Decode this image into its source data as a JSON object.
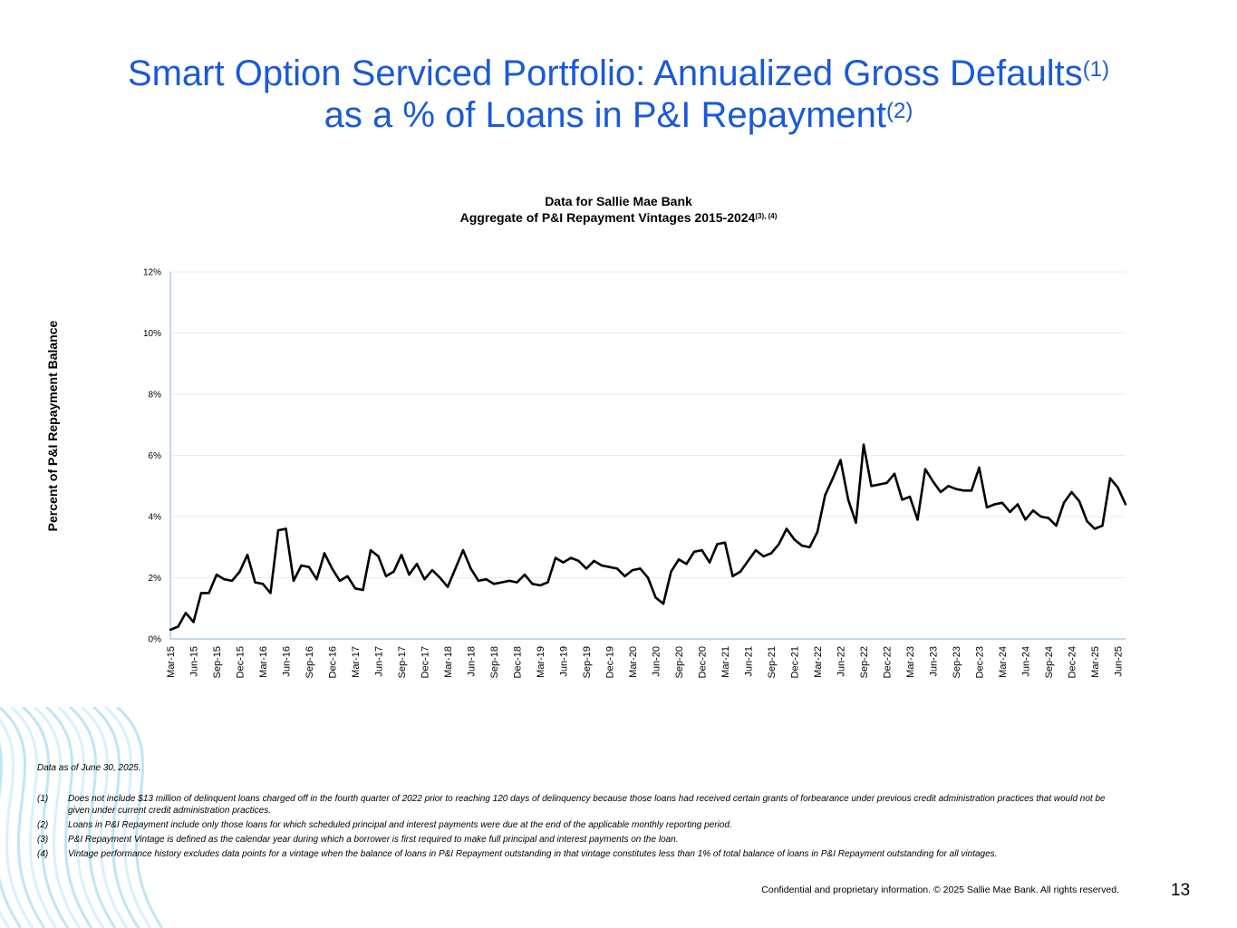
{
  "slide": {
    "title_part1": "Smart Option Serviced Portfolio: Annualized Gross Defaults",
    "title_sup1": "(1)",
    "title_part2": "as a % of Loans in P&I Repayment",
    "title_sup2": "(2)",
    "data_as_of": "Data as of June 30, 2025.",
    "footnotes": [
      {
        "num": "(1)",
        "text": "Does not include $13 million of delinquent loans charged off in the fourth quarter of 2022 prior to reaching 120 days of delinquency because those loans had received certain grants of forbearance under previous credit administration practices that would not be given under current credit administration practices."
      },
      {
        "num": "(2)",
        "text": "Loans in P&I Repayment include only those loans for which scheduled principal and interest payments were due at the end of the applicable monthly reporting period."
      },
      {
        "num": "(3)",
        "text": "P&I Repayment Vintage is defined as the calendar year during which a borrower is first required to make full principal and interest payments on the loan."
      },
      {
        "num": "(4)",
        "text": "Vintage performance history excludes data points for a vintage when the balance of loans in P&I Repayment outstanding in that vintage constitutes less than 1% of total balance of loans in P&I Repayment outstanding for all vintages."
      }
    ],
    "confidential": "Confidential and proprietary information. © 2025 Sallie Mae Bank. All rights reserved.",
    "page_number": "13"
  },
  "chart_data": {
    "type": "line",
    "title_line1": "Data for Sallie Mae Bank",
    "title_line2": "Aggregate of P&I Repayment Vintages 2015-2024",
    "title_sup": "(3), (4)",
    "xlabel": "",
    "ylabel": "Percent of P&I Repayment  Balance",
    "ylim": [
      0,
      12
    ],
    "yticks": [
      0,
      2,
      4,
      6,
      8,
      10,
      12
    ],
    "ytick_labels": [
      "0%",
      "2%",
      "4%",
      "6%",
      "8%",
      "10%",
      "12%"
    ],
    "x_tick_labels": [
      "Mar-15",
      "Jun-15",
      "Sep-15",
      "Dec-15",
      "Mar-16",
      "Jun-16",
      "Sep-16",
      "Dec-16",
      "Mar-17",
      "Jun-17",
      "Sep-17",
      "Dec-17",
      "Mar-18",
      "Jun-18",
      "Sep-18",
      "Dec-18",
      "Mar-19",
      "Jun-19",
      "Sep-19",
      "Dec-19",
      "Mar-20",
      "Jun-20",
      "Sep-20",
      "Dec-20",
      "Mar-21",
      "Jun-21",
      "Sep-21",
      "Dec-21",
      "Mar-22",
      "Jun-22",
      "Sep-22",
      "Dec-22",
      "Mar-23",
      "Jun-23",
      "Sep-23",
      "Dec-23",
      "Mar-24",
      "Jun-24",
      "Sep-24",
      "Dec-24",
      "Mar-25",
      "Jun-25"
    ],
    "x_start": "Mar-15",
    "x_end": "Jun-25",
    "series": [
      {
        "name": "Annualized Gross Defaults",
        "color": "#000000",
        "values": [
          0.3,
          0.4,
          0.85,
          0.55,
          1.5,
          1.5,
          2.1,
          1.95,
          1.9,
          2.2,
          2.75,
          1.85,
          1.8,
          1.5,
          3.55,
          3.6,
          1.9,
          2.4,
          2.35,
          1.95,
          2.8,
          2.3,
          1.9,
          2.05,
          1.65,
          1.6,
          2.9,
          2.7,
          2.05,
          2.2,
          2.75,
          2.1,
          2.45,
          1.95,
          2.25,
          2.0,
          1.7,
          2.3,
          2.9,
          2.3,
          1.9,
          1.95,
          1.8,
          1.85,
          1.9,
          1.85,
          2.1,
          1.8,
          1.75,
          1.85,
          2.65,
          2.5,
          2.65,
          2.55,
          2.3,
          2.55,
          2.4,
          2.35,
          2.3,
          2.05,
          2.25,
          2.3,
          2.0,
          1.35,
          1.15,
          2.2,
          2.6,
          2.45,
          2.85,
          2.9,
          2.5,
          3.1,
          3.15,
          2.05,
          2.2,
          2.55,
          2.9,
          2.7,
          2.8,
          3.1,
          3.6,
          3.25,
          3.05,
          3.0,
          3.5,
          4.7,
          5.25,
          5.85,
          4.55,
          3.8,
          6.35,
          5.0,
          5.05,
          5.1,
          5.4,
          4.55,
          4.65,
          3.9,
          5.55,
          5.15,
          4.8,
          5.0,
          4.9,
          4.85,
          4.85,
          5.6,
          4.3,
          4.4,
          4.45,
          4.15,
          4.4,
          3.9,
          4.2,
          4.0,
          3.95,
          3.7,
          4.45,
          4.8,
          4.5,
          3.85,
          3.6,
          3.7,
          5.25,
          4.95,
          4.4
        ]
      }
    ],
    "grid": true,
    "legend": "none"
  },
  "colors": {
    "title": "#1a5ad8",
    "axis": "#8ab0dc",
    "grid": "#ebebeb",
    "line": "#000000"
  }
}
